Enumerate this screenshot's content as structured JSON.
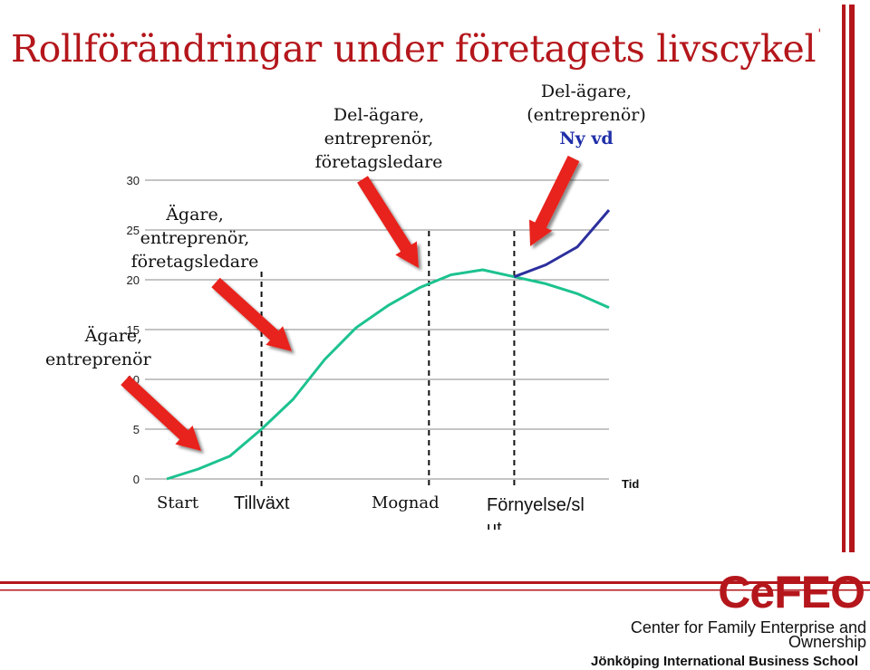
{
  "title": "Rollförändringar under företagets livscykel",
  "title_mark": "'",
  "annotations": {
    "owner_entrepreneur": [
      "Ägare,",
      "entreprenör"
    ],
    "owner_entrepreneur_manager": [
      "Ägare,",
      "entreprenör,",
      "företagsledare"
    ],
    "coowner_entrepreneur_manager": [
      "Del-ägare,",
      "entreprenör,",
      "företagsledare"
    ],
    "coowner_entrepreneur": [
      "Del-ägare,",
      "(entreprenör)"
    ],
    "new_ceo": "Ny vd"
  },
  "phases": [
    "Start",
    "Tillväxt",
    "Mognad",
    "Förnyelse/sl",
    "ut"
  ],
  "brand": "CeFEO",
  "institution": "Center for Family Enterprise and Ownership",
  "university": "Jönköping International Business School",
  "colors": {
    "accent": "#b4161b",
    "green_curve": "#1cc28f",
    "blue_curve": "#2b2f9e",
    "arrow": "#e8231c"
  },
  "chart_data": {
    "type": "line",
    "title": "",
    "xlabel": "Tid",
    "ylabel": "",
    "ylim": [
      0,
      30
    ],
    "yticks": [
      0,
      5,
      10,
      15,
      20,
      25,
      30
    ],
    "xlim": [
      0,
      14
    ],
    "grid": true,
    "series": [
      {
        "x": [
          0,
          1,
          2,
          3,
          4,
          5,
          6,
          7,
          8,
          9,
          10,
          11,
          12,
          13,
          14
        ],
        "values": [
          0,
          1,
          2.3,
          5,
          8,
          12,
          15.2,
          17.4,
          19.2,
          20.5,
          21,
          20.3,
          19.6,
          18.6,
          17.2
        ]
      },
      {
        "x": [
          11,
          12,
          13,
          14
        ],
        "values": [
          20.3,
          21.5,
          23.3,
          27
        ]
      }
    ],
    "phase_dividers_x": [
      3,
      8.3,
      11
    ]
  }
}
